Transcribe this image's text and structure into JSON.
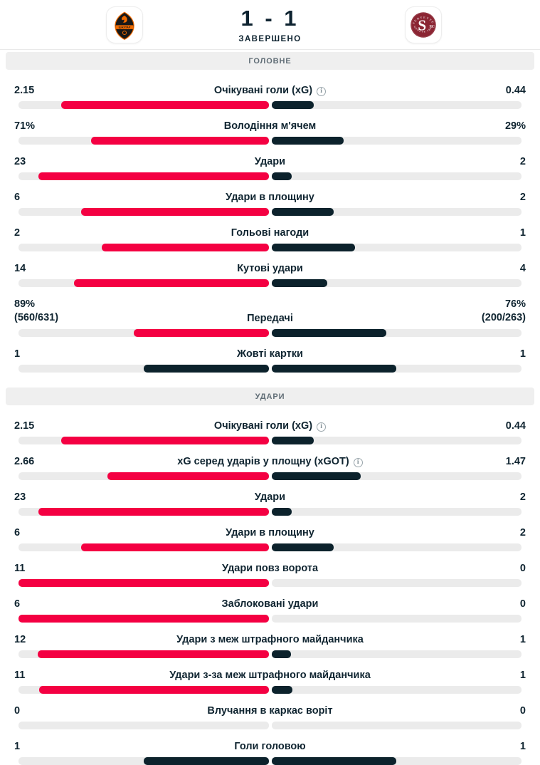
{
  "header": {
    "score": "1 - 1",
    "status": "ЗАВЕРШЕНО",
    "home_logo": "shakhtar-donetsk-crest",
    "home_logo_text": "ШАХТАР",
    "away_logo": "servette-fc-crest",
    "away_logo_text": {
      "arc_top": "SERVETTE",
      "letter": "S",
      "fc": "FC",
      "arc_bottom": "GENEVE 1890"
    }
  },
  "colors": {
    "home_bar": "#f40042",
    "away_bar": "#0c222c",
    "bar_track": "#ebebeb",
    "text": "#0f2430",
    "band_bg": "#efefef",
    "band_text": "#606d76",
    "shakhtar_orange": "#f06a00",
    "servette_maroon": "#8b2533"
  },
  "icons": {
    "info": "i"
  },
  "sections": [
    {
      "title": "ГОЛОВНЕ",
      "rows": [
        {
          "label": "Очікувані голи (xG)",
          "info": true,
          "home": "2.15",
          "away": "0.44",
          "home_num": 2.15,
          "away_num": 0.44
        },
        {
          "label": "Володіння м'ячем",
          "info": false,
          "home": "71%",
          "away": "29%",
          "home_num": 71,
          "away_num": 29
        },
        {
          "label": "Удари",
          "info": false,
          "home": "23",
          "away": "2",
          "home_num": 23,
          "away_num": 2
        },
        {
          "label": "Удари в площину",
          "info": false,
          "home": "6",
          "away": "2",
          "home_num": 6,
          "away_num": 2
        },
        {
          "label": "Гольові нагоди",
          "info": false,
          "home": "2",
          "away": "1",
          "home_num": 2,
          "away_num": 1
        },
        {
          "label": "Кутові удари",
          "info": false,
          "home": "14",
          "away": "4",
          "home_num": 14,
          "away_num": 4
        },
        {
          "label": "Передачі",
          "info": false,
          "home": "89%",
          "home_sub": "(560/631)",
          "away": "76%",
          "away_sub": "(200/263)",
          "home_num": 89,
          "away_num": 76
        },
        {
          "label": "Жовті картки",
          "info": false,
          "home": "1",
          "away": "1",
          "home_num": 1,
          "away_num": 1
        }
      ]
    },
    {
      "title": "УДАРИ",
      "rows": [
        {
          "label": "Очікувані голи (xG)",
          "info": true,
          "home": "2.15",
          "away": "0.44",
          "home_num": 2.15,
          "away_num": 0.44
        },
        {
          "label": "xG серед ударів у площну (xGOT)",
          "info": true,
          "home": "2.66",
          "away": "1.47",
          "home_num": 2.66,
          "away_num": 1.47
        },
        {
          "label": "Удари",
          "info": false,
          "home": "23",
          "away": "2",
          "home_num": 23,
          "away_num": 2
        },
        {
          "label": "Удари в площину",
          "info": false,
          "home": "6",
          "away": "2",
          "home_num": 6,
          "away_num": 2
        },
        {
          "label": "Удари повз ворота",
          "info": false,
          "home": "11",
          "away": "0",
          "home_num": 11,
          "away_num": 0
        },
        {
          "label": "Заблоковані удари",
          "info": false,
          "home": "6",
          "away": "0",
          "home_num": 6,
          "away_num": 0
        },
        {
          "label": "Удари з меж штрафного майданчика",
          "info": false,
          "home": "12",
          "away": "1",
          "home_num": 12,
          "away_num": 1
        },
        {
          "label": "Удари з-за меж штрафного майданчика",
          "info": false,
          "home": "11",
          "away": "1",
          "home_num": 11,
          "away_num": 1
        },
        {
          "label": "Влучання в каркас воріт",
          "info": false,
          "home": "0",
          "away": "0",
          "home_num": 0,
          "away_num": 0
        },
        {
          "label": "Голи головою",
          "info": false,
          "home": "1",
          "away": "1",
          "home_num": 1,
          "away_num": 1
        }
      ]
    }
  ]
}
